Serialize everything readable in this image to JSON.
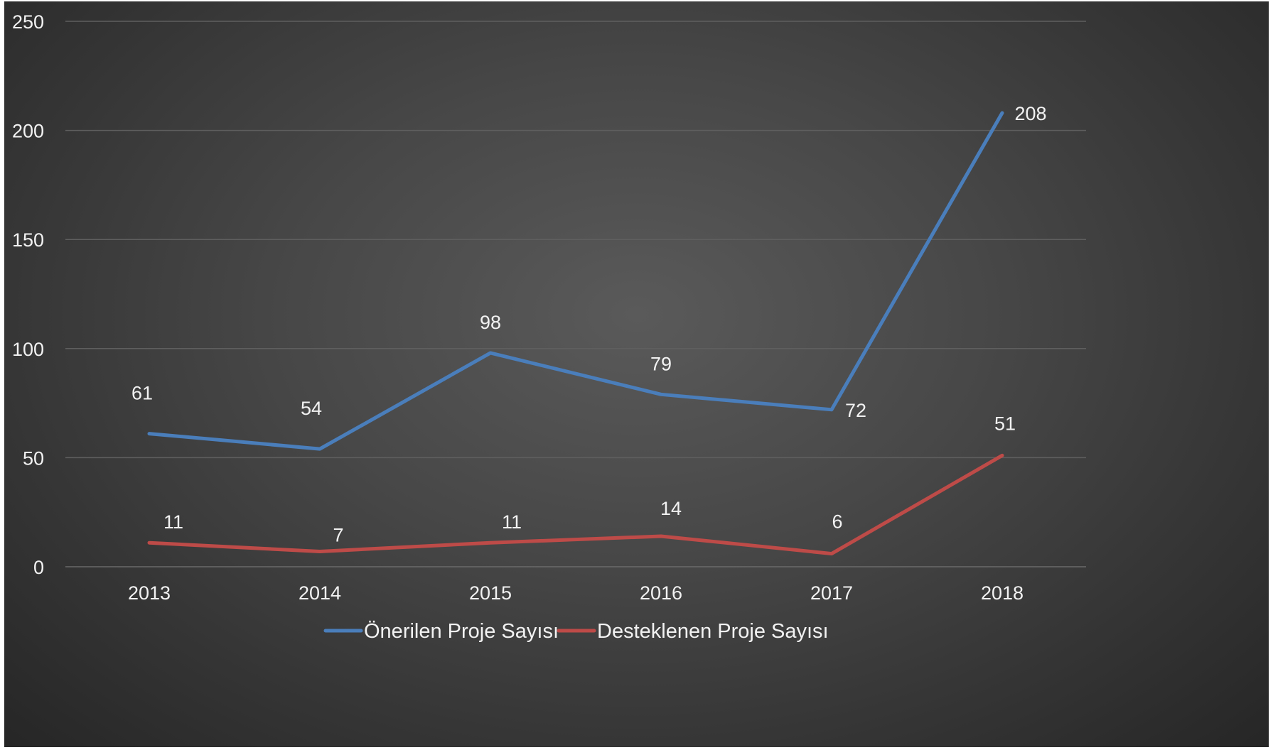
{
  "chart_data": {
    "type": "line",
    "title": "",
    "xlabel": "",
    "ylabel": "",
    "categories": [
      "2013",
      "2014",
      "2015",
      "2016",
      "2017",
      "2018"
    ],
    "ylim": [
      0,
      250
    ],
    "yticks": [
      0,
      50,
      100,
      150,
      200,
      250
    ],
    "grid": true,
    "legend_position": "bottom",
    "series": [
      {
        "name": "Önerilen Proje Sayısı",
        "values": [
          61,
          54,
          98,
          79,
          72,
          208
        ],
        "color": "#4a7ebb"
      },
      {
        "name": "Desteklenen Proje Sayısı",
        "values": [
          11,
          7,
          11,
          14,
          6,
          51
        ],
        "color": "#be4b48"
      }
    ]
  },
  "theme": {
    "background": "#474747",
    "text_color": "#f2f2f2",
    "grid_color": "#5f5f5f"
  }
}
